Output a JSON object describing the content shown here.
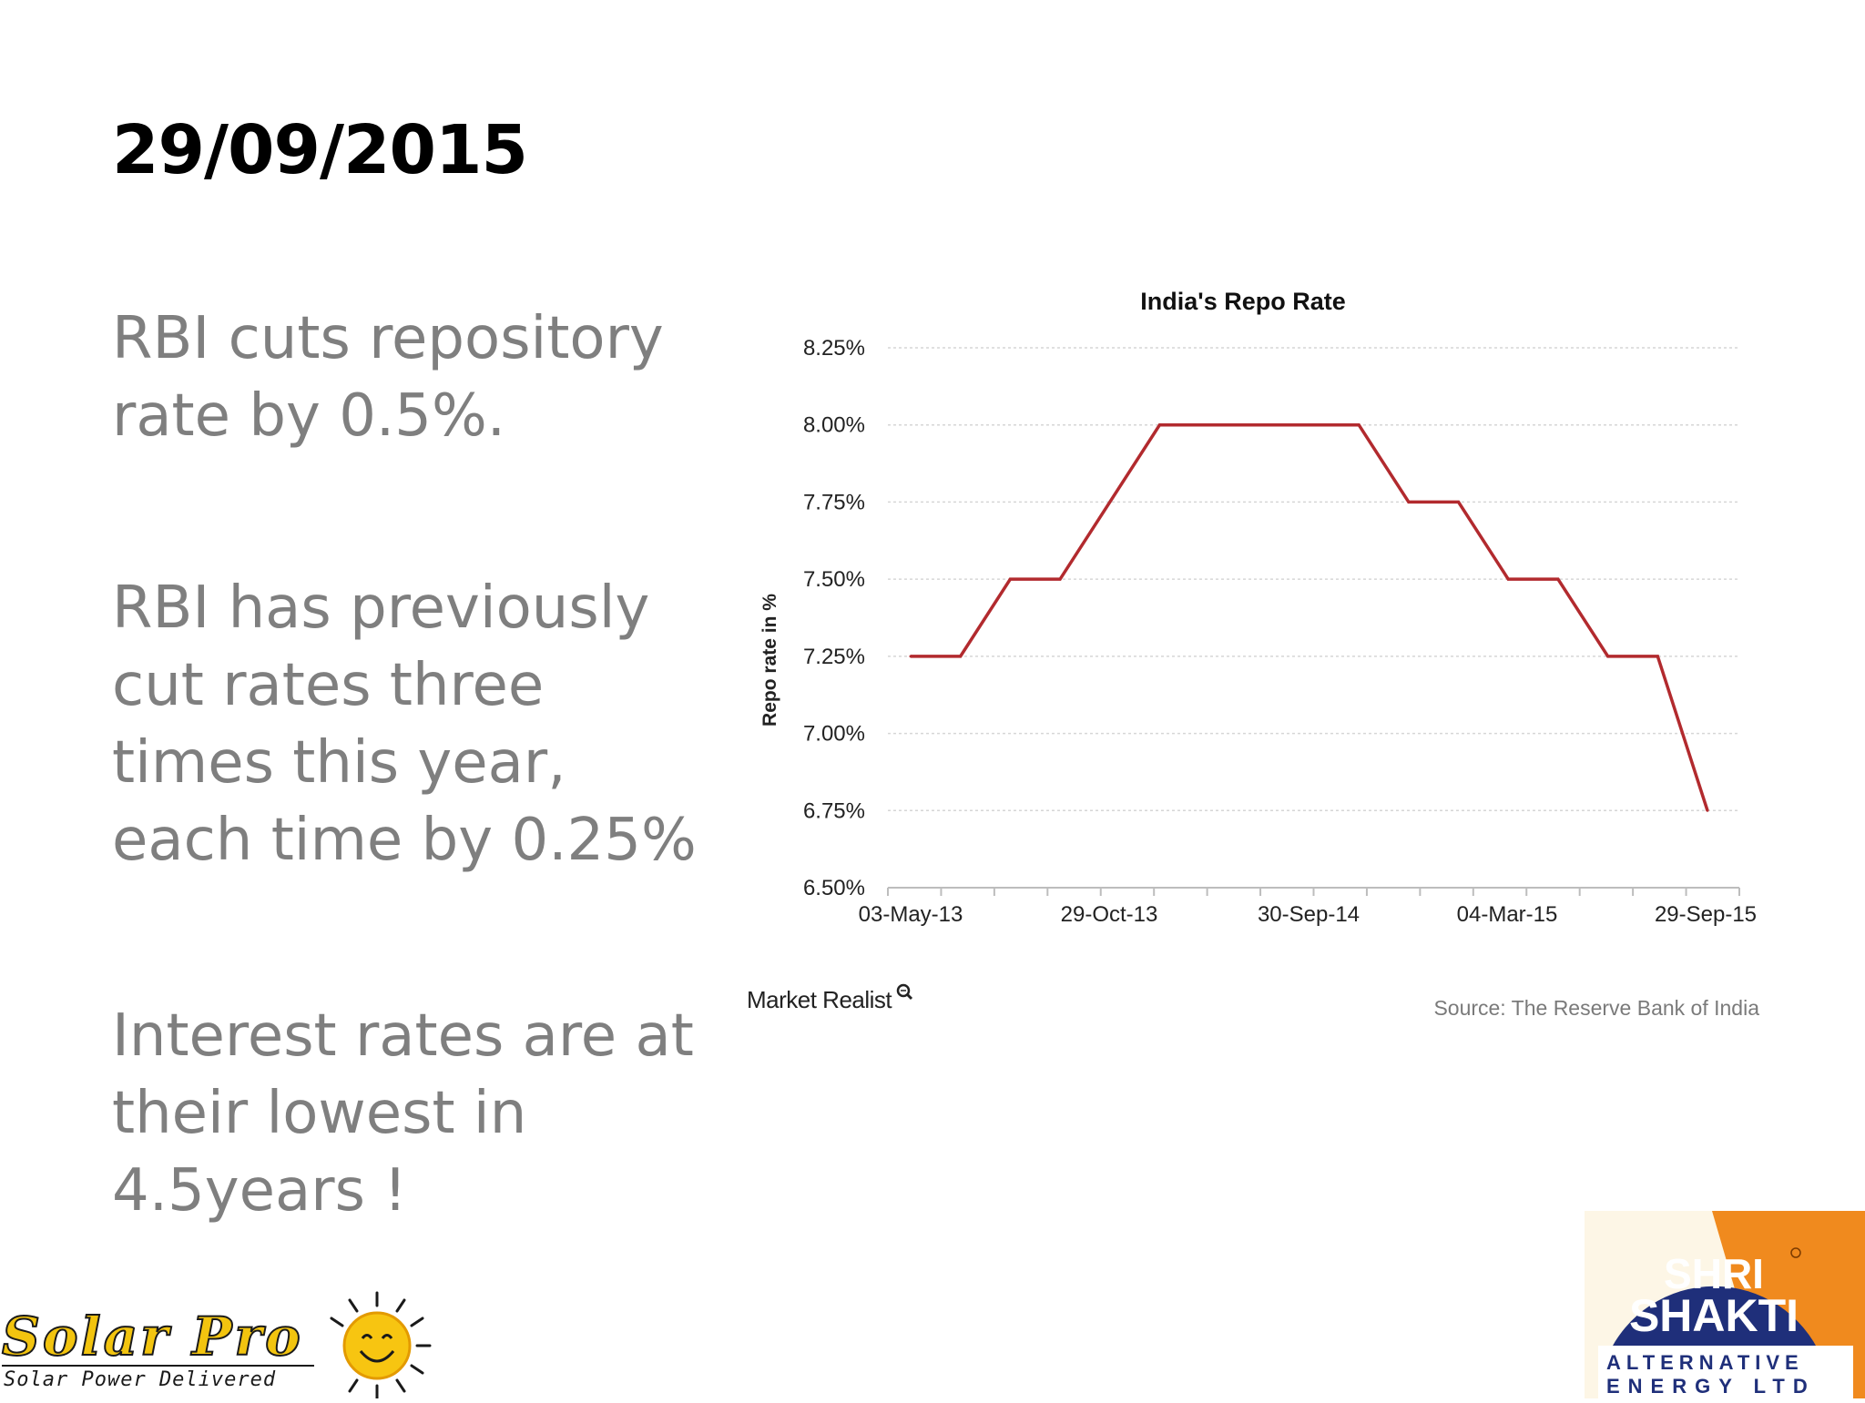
{
  "slide": {
    "title": "29/09/2015",
    "paragraphs": [
      "RBI cuts repository rate by 0.5%.",
      "RBI has previously cut rates three times this year, each time by 0.25%",
      "Interest rates are at their lowest in 4.5years !"
    ]
  },
  "chart_data": {
    "type": "line",
    "title": "India's Repo Rate",
    "xlabel": "",
    "ylabel": "Repo rate in %",
    "ylim": [
      6.5,
      8.25
    ],
    "y_ticks": [
      6.5,
      6.75,
      7.0,
      7.25,
      7.5,
      7.75,
      8.0,
      8.25
    ],
    "y_tick_labels": [
      "6.50%",
      "6.75%",
      "7.00%",
      "7.25%",
      "7.50%",
      "7.75%",
      "8.00%",
      "8.25%"
    ],
    "x_tick_labels": [
      "03-May-13",
      "29-Oct-13",
      "30-Sep-14",
      "04-Mar-15",
      "29-Sep-15"
    ],
    "x": [
      0,
      1,
      2,
      3,
      4,
      5,
      6,
      7,
      8,
      9,
      10,
      11,
      12,
      13,
      14,
      15,
      16
    ],
    "series": [
      {
        "color": "#b22a2e",
        "values": [
          7.25,
          7.25,
          7.5,
          7.5,
          7.75,
          8.0,
          8.0,
          8.0,
          8.0,
          8.0,
          7.75,
          7.75,
          7.5,
          7.5,
          7.25,
          7.25,
          6.75
        ]
      }
    ],
    "grid": true,
    "brand": "Market Realist",
    "source": "Source: The Reserve Bank of India"
  },
  "logos": {
    "solar_pro": {
      "name": "Solar Pro",
      "tagline": "Solar Power Delivered"
    },
    "shri_shakti": {
      "line1": "SHRI",
      "line2": "SHAKTI",
      "line3": "ALTERNATIVE",
      "line4": "ENERGY LTD"
    }
  },
  "colors": {
    "line": "#b22a2e",
    "text_grey": "#7f7f7f",
    "orange": "#f08a1e",
    "navy": "#1f2f7a"
  }
}
